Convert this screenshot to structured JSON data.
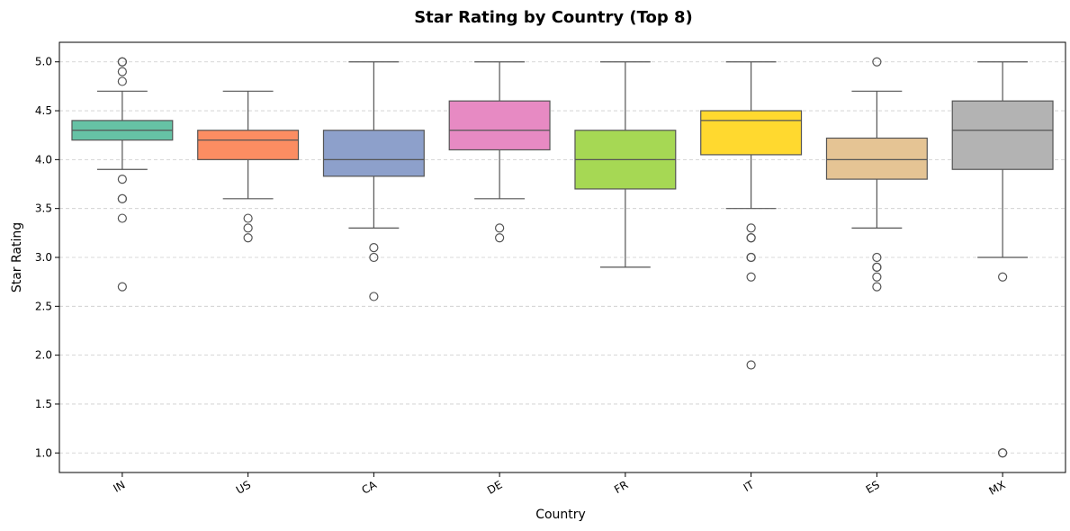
{
  "chart_data": {
    "type": "box",
    "title": "Star Rating by Country (Top 8)",
    "xlabel": "Country",
    "ylabel": "Star Rating",
    "ylim": [
      0.8,
      5.2
    ],
    "yticks": [
      "1.0",
      "1.5",
      "2.0",
      "2.5",
      "3.0",
      "3.5",
      "4.0",
      "4.5",
      "5.0"
    ],
    "ytick_values": [
      1.0,
      1.5,
      2.0,
      2.5,
      3.0,
      3.5,
      4.0,
      4.5,
      5.0
    ],
    "grid": "y-dashed",
    "categories": [
      "IN",
      "US",
      "CA",
      "DE",
      "FR",
      "IT",
      "ES",
      "MX"
    ],
    "boxes": [
      {
        "category": "IN",
        "color": "#66c2a5",
        "whisker_low": 3.9,
        "q1": 4.2,
        "median": 4.3,
        "q3": 4.4,
        "whisker_high": 4.7,
        "outliers": [
          5.0,
          5.0,
          4.9,
          4.8,
          3.8,
          3.6,
          3.6,
          3.4,
          2.7
        ]
      },
      {
        "category": "US",
        "color": "#fc8d62",
        "whisker_low": 3.6,
        "q1": 4.0,
        "median": 4.2,
        "q3": 4.3,
        "whisker_high": 4.7,
        "outliers": [
          3.4,
          3.3,
          3.2
        ]
      },
      {
        "category": "CA",
        "color": "#8da0cb",
        "whisker_low": 3.3,
        "q1": 3.83,
        "median": 4.0,
        "q3": 4.3,
        "whisker_high": 5.0,
        "outliers": [
          3.1,
          3.0,
          2.6
        ]
      },
      {
        "category": "DE",
        "color": "#e78ac3",
        "whisker_low": 3.6,
        "q1": 4.1,
        "median": 4.3,
        "q3": 4.6,
        "whisker_high": 5.0,
        "outliers": [
          3.3,
          3.2
        ]
      },
      {
        "category": "FR",
        "color": "#a6d854",
        "whisker_low": 2.9,
        "q1": 3.7,
        "median": 4.0,
        "q3": 4.3,
        "whisker_high": 5.0,
        "outliers": []
      },
      {
        "category": "IT",
        "color": "#ffd92f",
        "whisker_low": 3.5,
        "q1": 4.05,
        "median": 4.4,
        "q3": 4.5,
        "whisker_high": 5.0,
        "outliers": [
          3.3,
          3.2,
          3.2,
          3.0,
          3.0,
          2.8,
          1.9
        ]
      },
      {
        "category": "ES",
        "color": "#e5c494",
        "whisker_low": 3.3,
        "q1": 3.8,
        "median": 4.0,
        "q3": 4.22,
        "whisker_high": 4.7,
        "outliers": [
          5.0,
          3.0,
          2.9,
          2.9,
          2.8,
          2.7
        ]
      },
      {
        "category": "MX",
        "color": "#b3b3b3",
        "whisker_low": 3.0,
        "q1": 3.9,
        "median": 4.3,
        "q3": 4.6,
        "whisker_high": 5.0,
        "outliers": [
          2.8,
          1.0,
          1.0
        ]
      }
    ]
  }
}
